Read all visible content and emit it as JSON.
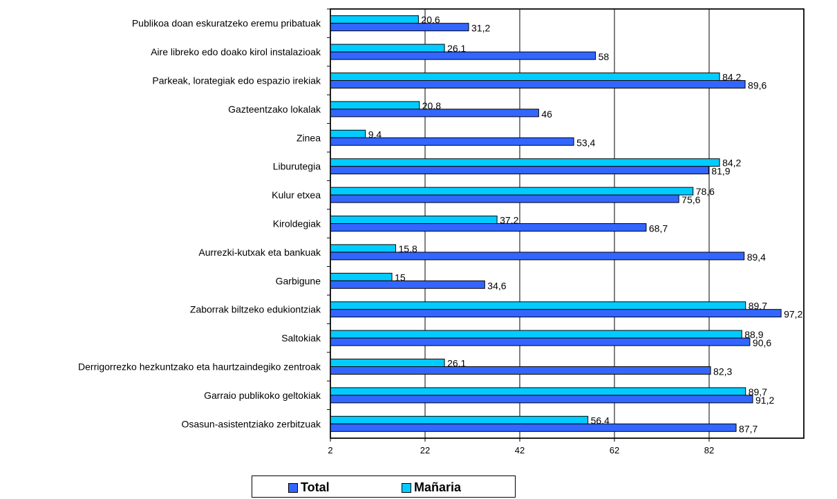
{
  "chart_data": {
    "type": "bar",
    "orientation": "horizontal",
    "title": "",
    "xlabel": "",
    "ylabel": "",
    "xlim": [
      2,
      102
    ],
    "xticks": [
      2,
      22,
      42,
      62,
      82
    ],
    "xtick_labels": [
      "2",
      "22",
      "42",
      "62",
      "82"
    ],
    "grid": true,
    "legend_position": "bottom",
    "categories": [
      "Publikoa doan eskuratzeko eremu pribatuak",
      "Aire libreko edo doako kirol instalazioak",
      "Parkeak, lorategiak edo espazio irekiak",
      "Gazteentzako lokalak",
      "Zinea",
      "Liburutegia",
      "Kulur etxea",
      "Kiroldegiak",
      "Aurrezki-kutxak eta bankuak",
      "Garbigune",
      "Zaborrak biltzeko edukiontziak",
      "Saltokiak",
      "Derrigorrezko hezkuntzako eta haurtzaindegiko zentroak",
      "Garraio publikoko geltokiak",
      "Osasun-asistentziako zerbitzuak"
    ],
    "series": [
      {
        "name": "Mañaria",
        "color": "#00ccff",
        "values": [
          20.6,
          26.1,
          84.2,
          20.8,
          9.4,
          84.2,
          78.6,
          37.2,
          15.8,
          15,
          89.7,
          88.9,
          26.1,
          89.7,
          56.4
        ],
        "labels": [
          "20,6",
          "26,1",
          "84,2",
          "20,8",
          "9,4",
          "84,2",
          "78,6",
          "37,2",
          "15,8",
          "15",
          "89,7",
          "88,9",
          "26,1",
          "89,7",
          "56,4"
        ]
      },
      {
        "name": "Total",
        "color": "#3366ff",
        "values": [
          31.2,
          58,
          89.6,
          46,
          53.4,
          81.9,
          75.6,
          68.7,
          89.4,
          34.6,
          97.2,
          90.6,
          82.3,
          91.2,
          87.7
        ],
        "labels": [
          "31,2",
          "58",
          "89,6",
          "46",
          "53,4",
          "81,9",
          "75,6",
          "68,7",
          "89,4",
          "34,6",
          "97,2",
          "90,6",
          "82,3",
          "91,2",
          "87,7"
        ]
      }
    ],
    "legend": [
      {
        "name": "Total",
        "color": "#3366ff"
      },
      {
        "name": "Mañaria",
        "color": "#00ccff"
      }
    ]
  }
}
